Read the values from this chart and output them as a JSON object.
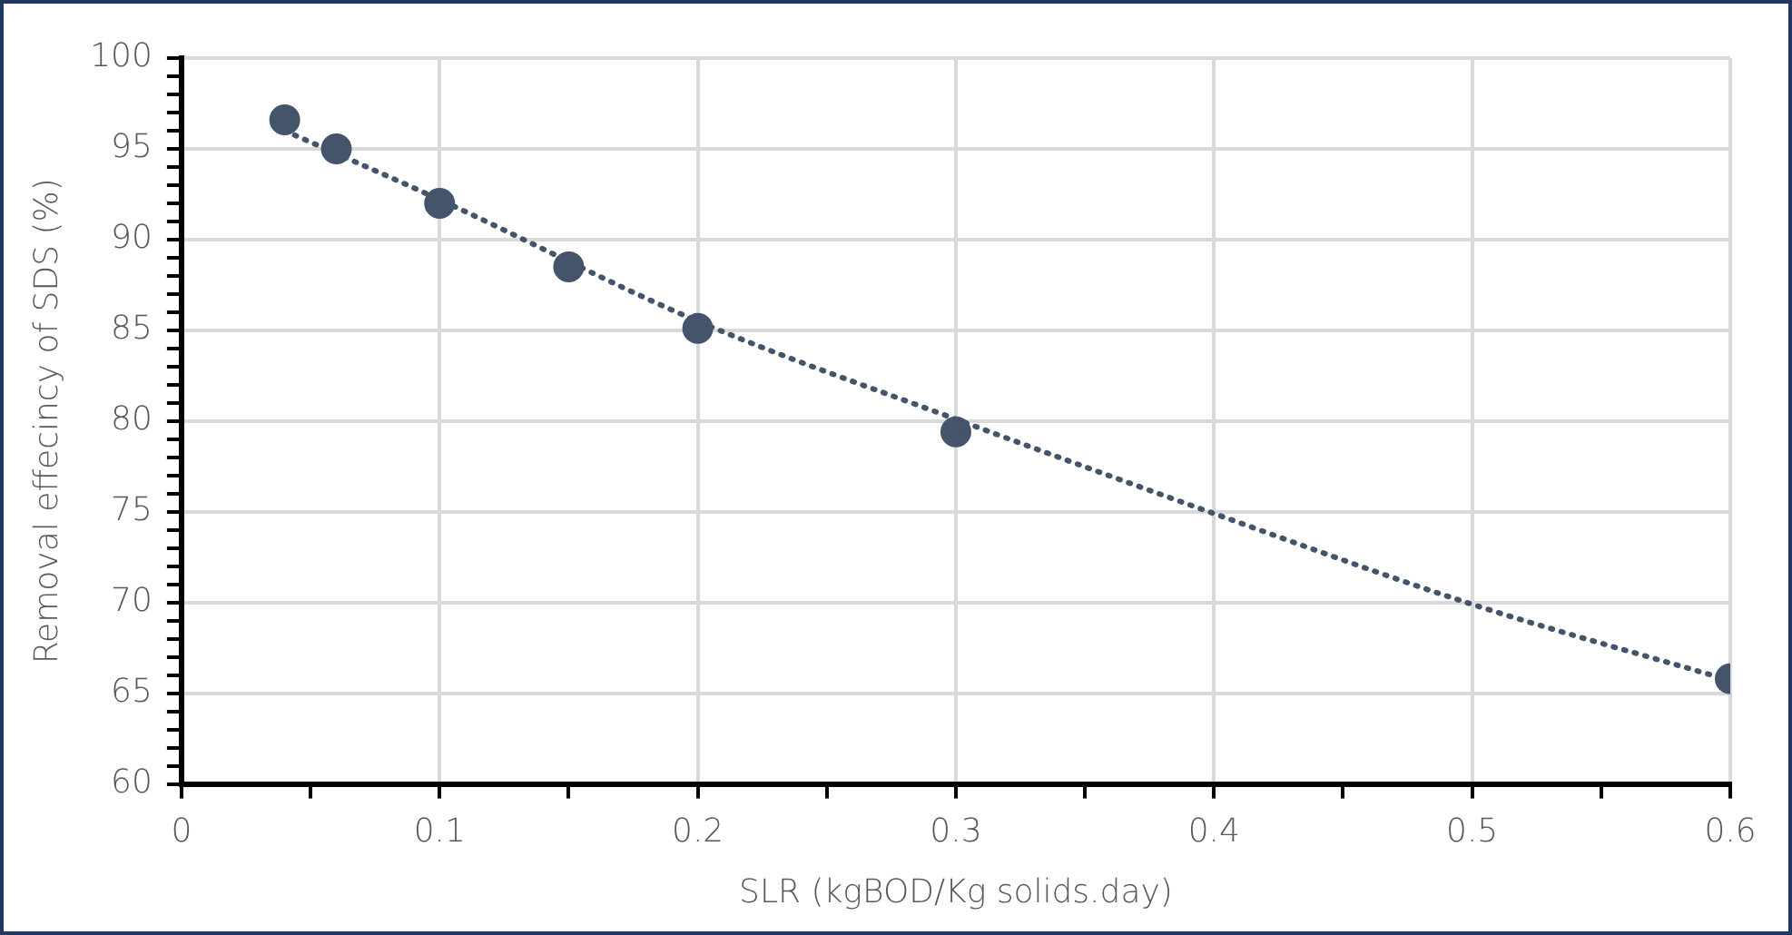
{
  "chart_data": {
    "type": "scatter",
    "xlabel": "SLR (kgBOD/Kg solids.day)",
    "ylabel": "Removal effecincy of SDS (%)",
    "marker": "circle",
    "grid": true,
    "xlim": [
      0,
      0.6
    ],
    "ylim": [
      60,
      100
    ],
    "xticks": [
      0,
      {
        "value": 0.05,
        "label": null
      },
      0.1,
      {
        "value": 0.15,
        "label": null
      },
      0.2,
      {
        "value": 0.25,
        "label": null
      },
      0.3,
      {
        "value": 0.35,
        "label": null
      },
      0.4,
      {
        "value": 0.45,
        "label": null
      },
      0.5,
      {
        "value": 0.55,
        "label": null
      },
      0.6
    ],
    "yticks": [
      60,
      {
        "value": 61,
        "label": null
      },
      {
        "value": 62,
        "label": null
      },
      {
        "value": 63,
        "label": null
      },
      {
        "value": 64,
        "label": null
      },
      65,
      {
        "value": 66,
        "label": null
      },
      {
        "value": 67,
        "label": null
      },
      {
        "value": 68,
        "label": null
      },
      {
        "value": 69,
        "label": null
      },
      70,
      {
        "value": 71,
        "label": null
      },
      {
        "value": 72,
        "label": null
      },
      {
        "value": 73,
        "label": null
      },
      {
        "value": 74,
        "label": null
      },
      75,
      {
        "value": 76,
        "label": null
      },
      {
        "value": 77,
        "label": null
      },
      {
        "value": 78,
        "label": null
      },
      {
        "value": 79,
        "label": null
      },
      80,
      {
        "value": 81,
        "label": null
      },
      {
        "value": 82,
        "label": null
      },
      {
        "value": 83,
        "label": null
      },
      {
        "value": 84,
        "label": null
      },
      85,
      {
        "value": 86,
        "label": null
      },
      {
        "value": 87,
        "label": null
      },
      {
        "value": 88,
        "label": null
      },
      {
        "value": 89,
        "label": null
      },
      90,
      {
        "value": 91,
        "label": null
      },
      {
        "value": 92,
        "label": null
      },
      {
        "value": 93,
        "label": null
      },
      {
        "value": 94,
        "label": null
      },
      95,
      {
        "value": 96,
        "label": null
      },
      {
        "value": 97,
        "label": null
      },
      {
        "value": 98,
        "label": null
      },
      {
        "value": 99,
        "label": null
      },
      100
    ],
    "series": [
      {
        "color": "#44546a",
        "x": [
          0.04,
          0.06,
          0.1,
          0.15,
          0.2,
          0.3,
          0.6
        ],
        "values": [
          96.6,
          95.0,
          92.0,
          88.5,
          85.1,
          79.4,
          65.8
        ]
      },
      {
        "type": "line",
        "color": "#44546a",
        "line_style": "dotted",
        "marker": "none",
        "x": [
          0.04,
          0.1,
          0.2,
          0.3,
          0.4,
          0.5,
          0.6
        ],
        "values": [
          96.0,
          92.2,
          85.5,
          80.1,
          74.9,
          69.9,
          65.7
        ]
      }
    ]
  }
}
